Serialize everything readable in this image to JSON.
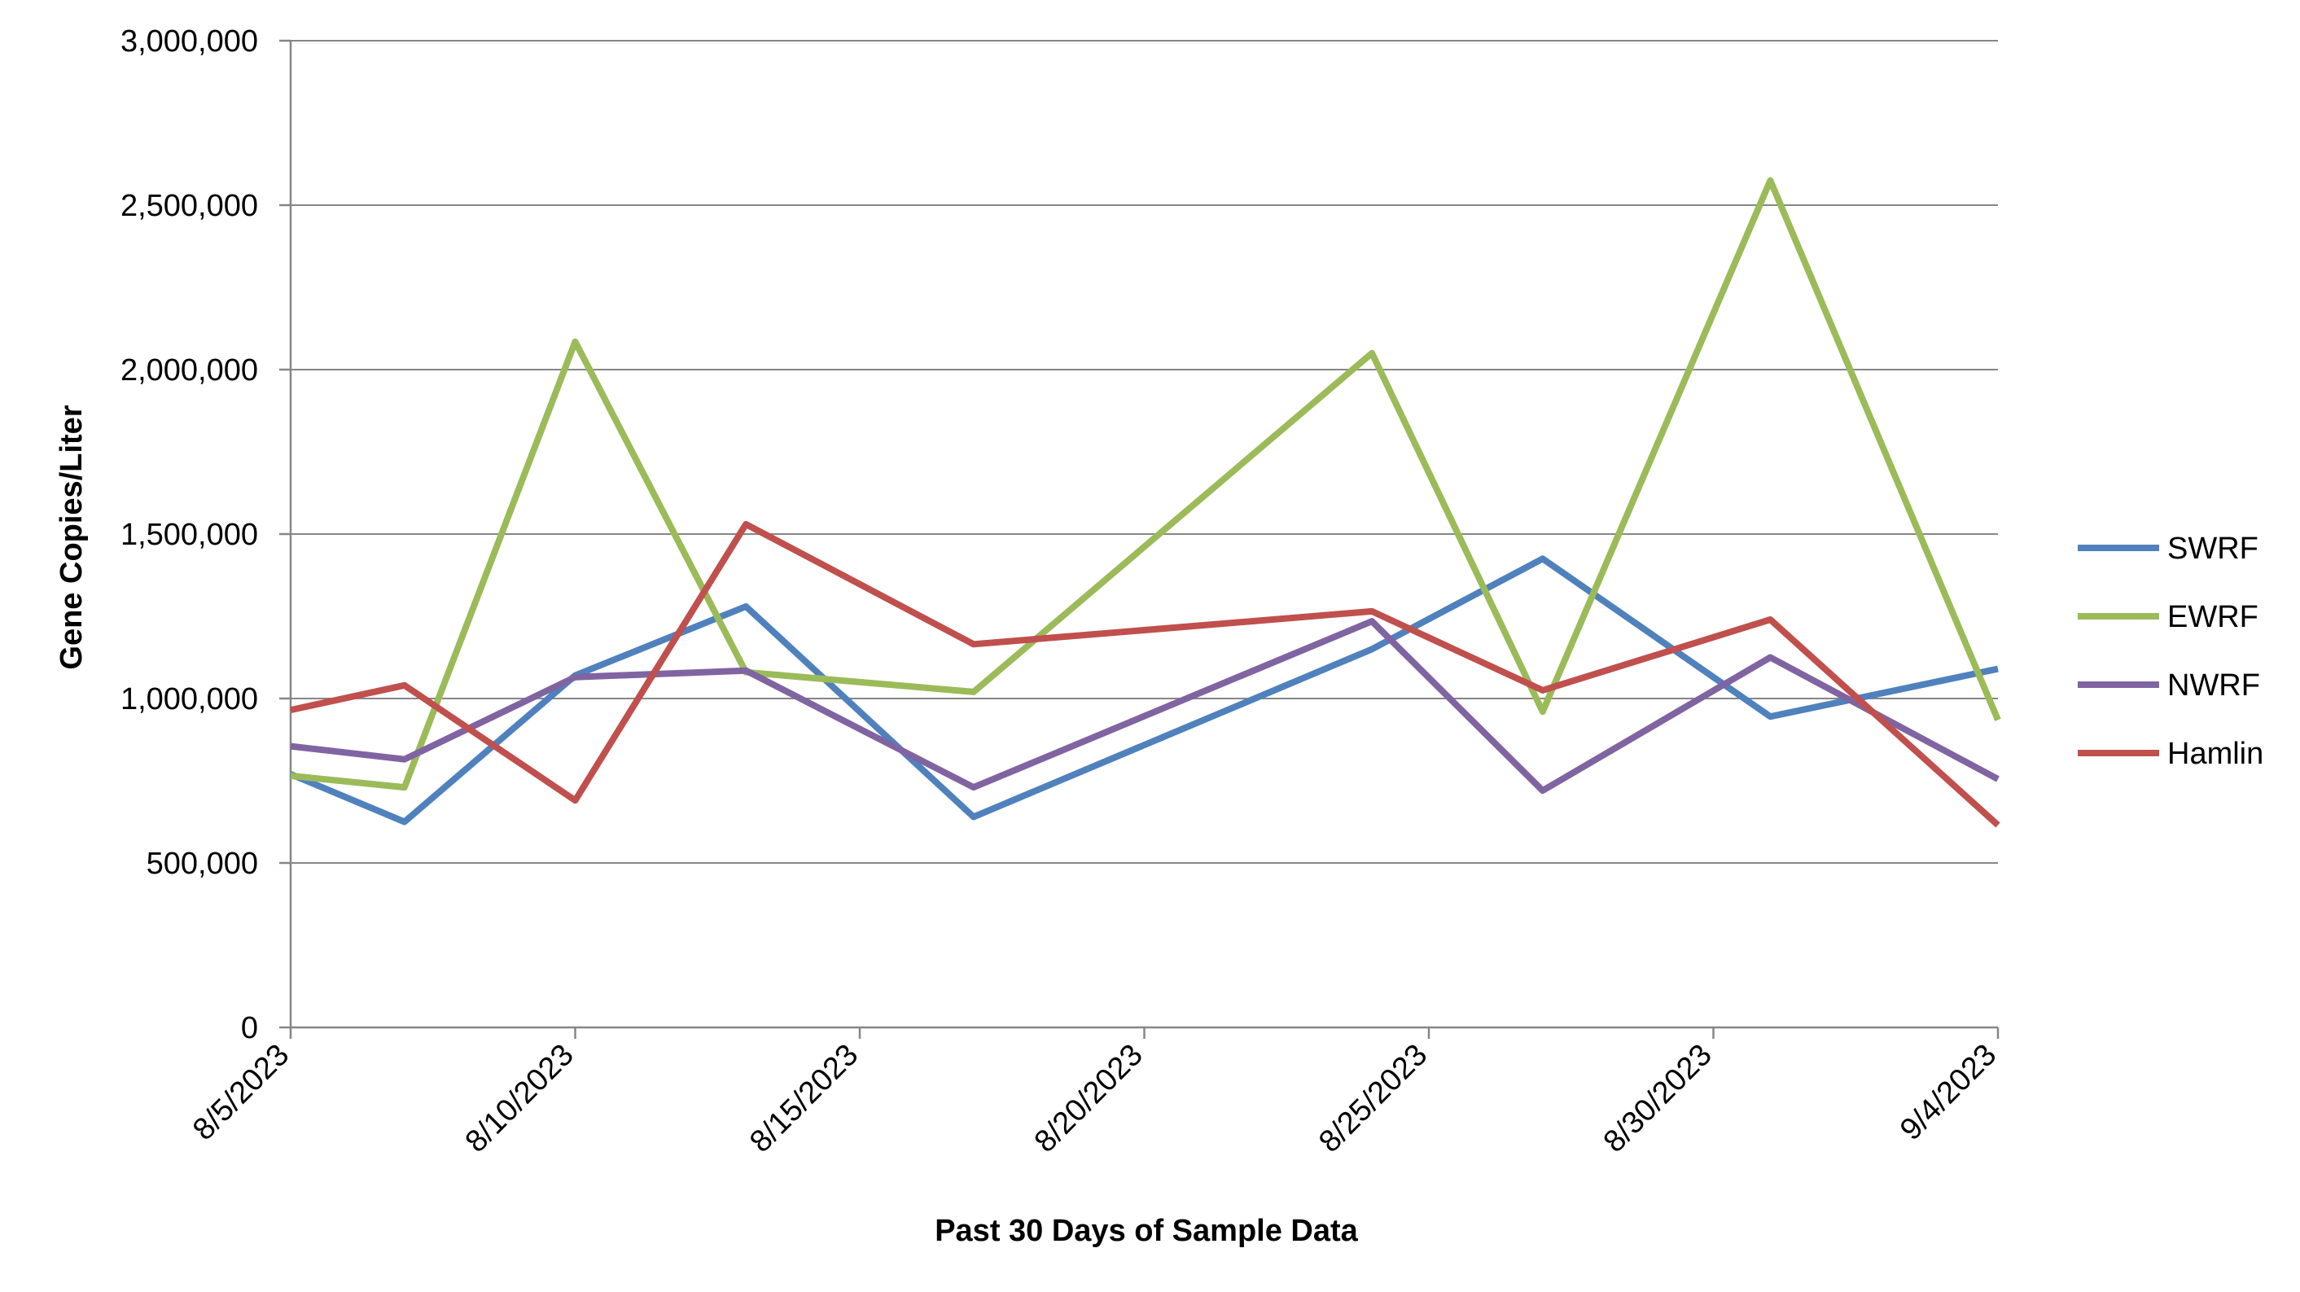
{
  "chart_data": {
    "type": "line",
    "title": "",
    "xlabel": "Past 30 Days of Sample Data",
    "ylabel": "Gene Copies/Liter",
    "ylim": [
      0,
      3000000
    ],
    "xlim": [
      "2023-08-05",
      "2023-09-04"
    ],
    "y_ticks": [
      0,
      500000,
      1000000,
      1500000,
      2000000,
      2500000,
      3000000
    ],
    "y_tick_labels": [
      "0",
      "500,000",
      "1,000,000",
      "1,500,000",
      "2,000,000",
      "2,500,000",
      "3,000,000"
    ],
    "x_ticks": [
      "2023-08-05",
      "2023-08-10",
      "2023-08-15",
      "2023-08-20",
      "2023-08-25",
      "2023-08-30",
      "2023-09-04"
    ],
    "x_tick_labels": [
      "8/5/2023",
      "8/10/2023",
      "8/15/2023",
      "8/20/2023",
      "8/25/2023",
      "8/30/2023",
      "9/4/2023"
    ],
    "grid": "horizontal",
    "legend_position": "right",
    "series": [
      {
        "name": "SWRF",
        "color": "#4F81BD",
        "x": [
          "2023-08-05",
          "2023-08-07",
          "2023-08-10",
          "2023-08-13",
          "2023-08-17",
          "2023-08-24",
          "2023-08-27",
          "2023-08-31",
          "2023-09-04"
        ],
        "values": [
          770000,
          625000,
          1070000,
          1280000,
          640000,
          1150000,
          1425000,
          945000,
          1090000
        ]
      },
      {
        "name": "EWRF",
        "color": "#9BBB59",
        "x": [
          "2023-08-05",
          "2023-08-07",
          "2023-08-10",
          "2023-08-13",
          "2023-08-17",
          "2023-08-24",
          "2023-08-27",
          "2023-08-31",
          "2023-09-04"
        ],
        "values": [
          765000,
          730000,
          2085000,
          1080000,
          1020000,
          2050000,
          960000,
          2575000,
          935000
        ]
      },
      {
        "name": "NWRF",
        "color": "#8064A2",
        "x": [
          "2023-08-05",
          "2023-08-07",
          "2023-08-10",
          "2023-08-13",
          "2023-08-17",
          "2023-08-24",
          "2023-08-27",
          "2023-08-31",
          "2023-09-04"
        ],
        "values": [
          855000,
          815000,
          1065000,
          1085000,
          730000,
          1235000,
          720000,
          1125000,
          755000
        ]
      },
      {
        "name": "Hamlin",
        "color": "#C0504D",
        "x": [
          "2023-08-05",
          "2023-08-07",
          "2023-08-10",
          "2023-08-13",
          "2023-08-17",
          "2023-08-24",
          "2023-08-27",
          "2023-08-31",
          "2023-09-04"
        ],
        "values": [
          965000,
          1040000,
          690000,
          1530000,
          1165000,
          1265000,
          1025000,
          1240000,
          615000
        ]
      }
    ]
  }
}
